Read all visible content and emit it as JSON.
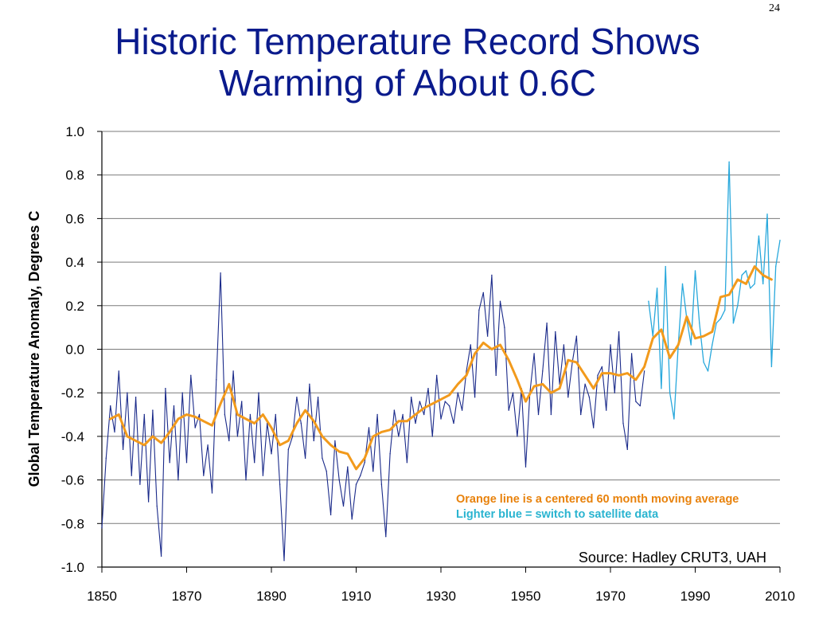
{
  "slide_number": "24",
  "title_line1": "Historic Temperature Record Shows",
  "title_line2": "Warming of About 0.6C",
  "colors": {
    "title": "#0a1a8c",
    "dark_series": "#1a2a8a",
    "satellite_series": "#28a8dc",
    "moving_average": "#f29a1c",
    "note_orange": "#e8820c",
    "note_blue": "#2ab4d0",
    "grid": "#7a7a7a"
  },
  "chart_data": {
    "type": "line",
    "title": "",
    "xlabel": "",
    "ylabel": "Global Temperature Anomaly, Degrees C",
    "xlim": [
      1850,
      2010
    ],
    "ylim": [
      -1.0,
      1.0
    ],
    "x_ticks": [
      "1850",
      "1870",
      "1890",
      "1910",
      "1930",
      "1950",
      "1970",
      "1990",
      "2010"
    ],
    "y_ticks": [
      "1.0",
      "0.8",
      "0.6",
      "0.4",
      "0.2",
      "0.0",
      "-0.2",
      "-0.4",
      "-0.6",
      "-0.8",
      "-1.0"
    ],
    "grid": "horizontal",
    "annotations": {
      "note_orange": "Orange line is a centered 60 month moving average",
      "note_blue": "Lighter blue = switch to satellite data",
      "source": "Source:  Hadley CRUT3, UAH"
    },
    "series": [
      {
        "name": "Hadley CRUT3 (monthly)",
        "style": "dark",
        "x": [
          1850,
          1851,
          1852,
          1853,
          1854,
          1855,
          1856,
          1857,
          1858,
          1859,
          1860,
          1861,
          1862,
          1863,
          1864,
          1865,
          1866,
          1867,
          1868,
          1869,
          1870,
          1871,
          1872,
          1873,
          1874,
          1875,
          1876,
          1877,
          1878,
          1879,
          1880,
          1881,
          1882,
          1883,
          1884,
          1885,
          1886,
          1887,
          1888,
          1889,
          1890,
          1891,
          1892,
          1893,
          1894,
          1895,
          1896,
          1897,
          1898,
          1899,
          1900,
          1901,
          1902,
          1903,
          1904,
          1905,
          1906,
          1907,
          1908,
          1909,
          1910,
          1911,
          1912,
          1913,
          1914,
          1915,
          1916,
          1917,
          1918,
          1919,
          1920,
          1921,
          1922,
          1923,
          1924,
          1925,
          1926,
          1927,
          1928,
          1929,
          1930,
          1931,
          1932,
          1933,
          1934,
          1935,
          1936,
          1937,
          1938,
          1939,
          1940,
          1941,
          1942,
          1943,
          1944,
          1945,
          1946,
          1947,
          1948,
          1949,
          1950,
          1951,
          1952,
          1953,
          1954,
          1955,
          1956,
          1957,
          1958,
          1959,
          1960,
          1961,
          1962,
          1963,
          1964,
          1965,
          1966,
          1967,
          1968,
          1969,
          1970,
          1971,
          1972,
          1973,
          1974,
          1975,
          1976,
          1977,
          1978
        ],
        "y": [
          -0.82,
          -0.5,
          -0.26,
          -0.38,
          -0.1,
          -0.46,
          -0.2,
          -0.58,
          -0.22,
          -0.62,
          -0.3,
          -0.7,
          -0.28,
          -0.72,
          -0.95,
          -0.18,
          -0.52,
          -0.26,
          -0.6,
          -0.2,
          -0.52,
          -0.12,
          -0.36,
          -0.3,
          -0.58,
          -0.44,
          -0.66,
          -0.14,
          0.35,
          -0.3,
          -0.42,
          -0.1,
          -0.4,
          -0.24,
          -0.6,
          -0.3,
          -0.52,
          -0.2,
          -0.58,
          -0.34,
          -0.48,
          -0.3,
          -0.62,
          -0.97,
          -0.46,
          -0.4,
          -0.22,
          -0.34,
          -0.5,
          -0.16,
          -0.42,
          -0.22,
          -0.5,
          -0.56,
          -0.76,
          -0.42,
          -0.6,
          -0.72,
          -0.54,
          -0.78,
          -0.62,
          -0.58,
          -0.52,
          -0.36,
          -0.56,
          -0.3,
          -0.62,
          -0.86,
          -0.48,
          -0.28,
          -0.4,
          -0.3,
          -0.52,
          -0.22,
          -0.34,
          -0.24,
          -0.3,
          -0.18,
          -0.4,
          -0.12,
          -0.32,
          -0.24,
          -0.26,
          -0.34,
          -0.2,
          -0.28,
          -0.1,
          0.02,
          -0.22,
          0.18,
          0.26,
          0.06,
          0.34,
          -0.12,
          0.22,
          0.1,
          -0.28,
          -0.2,
          -0.4,
          -0.18,
          -0.54,
          -0.2,
          -0.02,
          -0.3,
          -0.1,
          0.12,
          -0.3,
          0.08,
          -0.16,
          0.02,
          -0.22,
          -0.06,
          0.06,
          -0.3,
          -0.16,
          -0.22,
          -0.36,
          -0.12,
          -0.08,
          -0.28,
          0.02,
          -0.2,
          0.08,
          -0.34,
          -0.46,
          -0.02,
          -0.24,
          -0.26,
          -0.1
        ]
      },
      {
        "name": "UAH (satellite)",
        "style": "light",
        "x": [
          1979,
          1980,
          1981,
          1982,
          1983,
          1984,
          1985,
          1986,
          1987,
          1988,
          1989,
          1990,
          1991,
          1992,
          1993,
          1994,
          1995,
          1996,
          1997,
          1998,
          1999,
          2000,
          2001,
          2002,
          2003,
          2004,
          2005,
          2006,
          2007,
          2008,
          2009,
          2010
        ],
        "y": [
          0.22,
          0.06,
          0.28,
          -0.18,
          0.38,
          -0.2,
          -0.32,
          0.02,
          0.3,
          0.14,
          0.02,
          0.36,
          0.12,
          -0.06,
          -0.1,
          0.02,
          0.12,
          0.14,
          0.18,
          0.86,
          0.12,
          0.2,
          0.34,
          0.36,
          0.28,
          0.3,
          0.52,
          0.3,
          0.62,
          -0.08,
          0.38,
          0.5
        ]
      },
      {
        "name": "Centered 60 month moving average",
        "style": "orange",
        "x": [
          1852,
          1854,
          1856,
          1858,
          1860,
          1862,
          1864,
          1866,
          1868,
          1870,
          1872,
          1874,
          1876,
          1878,
          1880,
          1882,
          1884,
          1886,
          1888,
          1890,
          1892,
          1894,
          1896,
          1898,
          1900,
          1902,
          1904,
          1906,
          1908,
          1910,
          1912,
          1914,
          1916,
          1918,
          1920,
          1922,
          1924,
          1926,
          1928,
          1930,
          1932,
          1934,
          1936,
          1938,
          1940,
          1942,
          1944,
          1946,
          1948,
          1950,
          1952,
          1954,
          1956,
          1958,
          1960,
          1962,
          1964,
          1966,
          1968,
          1970,
          1972,
          1974,
          1976,
          1978,
          1980,
          1982,
          1984,
          1986,
          1988,
          1990,
          1992,
          1994,
          1996,
          1998,
          2000,
          2002,
          2004,
          2006,
          2008
        ],
        "y": [
          -0.32,
          -0.3,
          -0.4,
          -0.42,
          -0.44,
          -0.4,
          -0.43,
          -0.38,
          -0.32,
          -0.3,
          -0.31,
          -0.33,
          -0.35,
          -0.25,
          -0.16,
          -0.3,
          -0.32,
          -0.34,
          -0.3,
          -0.36,
          -0.44,
          -0.42,
          -0.34,
          -0.28,
          -0.33,
          -0.4,
          -0.44,
          -0.47,
          -0.48,
          -0.55,
          -0.5,
          -0.4,
          -0.38,
          -0.37,
          -0.33,
          -0.33,
          -0.3,
          -0.27,
          -0.25,
          -0.23,
          -0.21,
          -0.16,
          -0.12,
          -0.02,
          0.03,
          0.0,
          0.02,
          -0.05,
          -0.14,
          -0.24,
          -0.17,
          -0.16,
          -0.2,
          -0.18,
          -0.05,
          -0.06,
          -0.12,
          -0.18,
          -0.11,
          -0.11,
          -0.12,
          -0.11,
          -0.14,
          -0.08,
          0.05,
          0.09,
          -0.04,
          0.02,
          0.15,
          0.05,
          0.06,
          0.08,
          0.24,
          0.25,
          0.32,
          0.3,
          0.38,
          0.34,
          0.32
        ]
      }
    ]
  }
}
